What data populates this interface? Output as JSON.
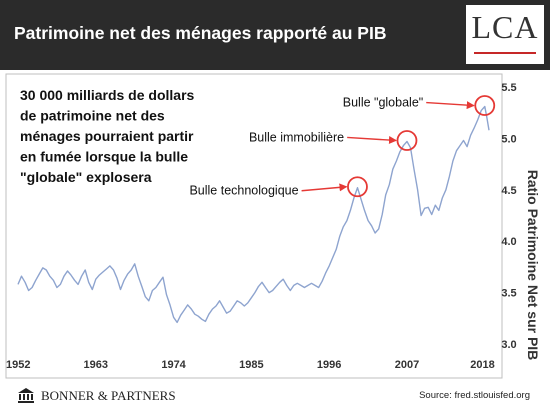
{
  "header": {
    "title": "Patrimoine net des ménages rapporté au PIB",
    "logo_text": "LCA"
  },
  "footer": {
    "brand": "BONNER & PARTNERS",
    "source": "Source: fred.stlouisfed.org"
  },
  "colors": {
    "header_bg": "#2b2b2b",
    "line": "#8ea4cf",
    "highlight": "#e53935",
    "text": "#111111"
  },
  "chart_data": {
    "type": "line",
    "title": "",
    "xlabel": "",
    "ylabel": "Ratio Patrimoine Net sur PIB",
    "xlim": [
      1952,
      2018.6
    ],
    "ylim": [
      3.0,
      5.5
    ],
    "x_ticks": [
      1952,
      1963,
      1974,
      1985,
      1996,
      2007,
      2018
    ],
    "y_ticks": [
      3.0,
      3.5,
      4.0,
      4.5,
      5.0,
      5.5
    ],
    "y_axis_side": "right",
    "grid": false,
    "legend": "none",
    "series": [
      {
        "name": "",
        "points": [
          [
            1952.0,
            3.58
          ],
          [
            1952.5,
            3.66
          ],
          [
            1953.0,
            3.6
          ],
          [
            1953.5,
            3.52
          ],
          [
            1954.0,
            3.55
          ],
          [
            1954.5,
            3.62
          ],
          [
            1955.0,
            3.68
          ],
          [
            1955.5,
            3.74
          ],
          [
            1956.0,
            3.72
          ],
          [
            1956.5,
            3.66
          ],
          [
            1957.0,
            3.62
          ],
          [
            1957.5,
            3.55
          ],
          [
            1958.0,
            3.58
          ],
          [
            1958.5,
            3.66
          ],
          [
            1959.0,
            3.71
          ],
          [
            1959.5,
            3.67
          ],
          [
            1960.0,
            3.62
          ],
          [
            1960.5,
            3.58
          ],
          [
            1961.0,
            3.66
          ],
          [
            1961.5,
            3.72
          ],
          [
            1962.0,
            3.6
          ],
          [
            1962.5,
            3.53
          ],
          [
            1963.0,
            3.63
          ],
          [
            1963.5,
            3.67
          ],
          [
            1964.0,
            3.7
          ],
          [
            1964.5,
            3.73
          ],
          [
            1965.0,
            3.76
          ],
          [
            1965.5,
            3.72
          ],
          [
            1966.0,
            3.64
          ],
          [
            1966.5,
            3.53
          ],
          [
            1967.0,
            3.62
          ],
          [
            1967.5,
            3.68
          ],
          [
            1968.0,
            3.72
          ],
          [
            1968.5,
            3.78
          ],
          [
            1969.0,
            3.66
          ],
          [
            1969.5,
            3.56
          ],
          [
            1970.0,
            3.46
          ],
          [
            1970.5,
            3.42
          ],
          [
            1971.0,
            3.52
          ],
          [
            1971.5,
            3.55
          ],
          [
            1972.0,
            3.6
          ],
          [
            1972.5,
            3.65
          ],
          [
            1973.0,
            3.48
          ],
          [
            1973.5,
            3.38
          ],
          [
            1974.0,
            3.26
          ],
          [
            1974.5,
            3.21
          ],
          [
            1975.0,
            3.28
          ],
          [
            1975.5,
            3.33
          ],
          [
            1976.0,
            3.38
          ],
          [
            1976.5,
            3.34
          ],
          [
            1977.0,
            3.29
          ],
          [
            1977.5,
            3.27
          ],
          [
            1978.0,
            3.24
          ],
          [
            1978.5,
            3.22
          ],
          [
            1979.0,
            3.29
          ],
          [
            1979.5,
            3.34
          ],
          [
            1980.0,
            3.37
          ],
          [
            1980.5,
            3.42
          ],
          [
            1981.0,
            3.36
          ],
          [
            1981.5,
            3.3
          ],
          [
            1982.0,
            3.32
          ],
          [
            1982.5,
            3.37
          ],
          [
            1983.0,
            3.42
          ],
          [
            1983.5,
            3.4
          ],
          [
            1984.0,
            3.37
          ],
          [
            1984.5,
            3.4
          ],
          [
            1985.0,
            3.45
          ],
          [
            1985.5,
            3.5
          ],
          [
            1986.0,
            3.56
          ],
          [
            1986.5,
            3.6
          ],
          [
            1987.0,
            3.55
          ],
          [
            1987.5,
            3.5
          ],
          [
            1988.0,
            3.52
          ],
          [
            1988.5,
            3.56
          ],
          [
            1989.0,
            3.6
          ],
          [
            1989.5,
            3.63
          ],
          [
            1990.0,
            3.57
          ],
          [
            1990.5,
            3.52
          ],
          [
            1991.0,
            3.57
          ],
          [
            1991.5,
            3.59
          ],
          [
            1992.0,
            3.57
          ],
          [
            1992.5,
            3.55
          ],
          [
            1993.0,
            3.57
          ],
          [
            1993.5,
            3.59
          ],
          [
            1994.0,
            3.57
          ],
          [
            1994.5,
            3.55
          ],
          [
            1995.0,
            3.61
          ],
          [
            1995.5,
            3.69
          ],
          [
            1996.0,
            3.76
          ],
          [
            1996.5,
            3.84
          ],
          [
            1997.0,
            3.92
          ],
          [
            1997.5,
            4.05
          ],
          [
            1998.0,
            4.14
          ],
          [
            1998.5,
            4.2
          ],
          [
            1999.0,
            4.3
          ],
          [
            1999.5,
            4.42
          ],
          [
            2000.0,
            4.52
          ],
          [
            2000.5,
            4.41
          ],
          [
            2001.0,
            4.3
          ],
          [
            2001.5,
            4.2
          ],
          [
            2002.0,
            4.15
          ],
          [
            2002.5,
            4.08
          ],
          [
            2003.0,
            4.12
          ],
          [
            2003.5,
            4.26
          ],
          [
            2004.0,
            4.45
          ],
          [
            2004.5,
            4.55
          ],
          [
            2005.0,
            4.7
          ],
          [
            2005.5,
            4.78
          ],
          [
            2006.0,
            4.87
          ],
          [
            2006.5,
            4.93
          ],
          [
            2007.0,
            4.97
          ],
          [
            2007.5,
            4.91
          ],
          [
            2008.0,
            4.7
          ],
          [
            2008.5,
            4.5
          ],
          [
            2009.0,
            4.25
          ],
          [
            2009.5,
            4.32
          ],
          [
            2010.0,
            4.33
          ],
          [
            2010.5,
            4.26
          ],
          [
            2011.0,
            4.35
          ],
          [
            2011.5,
            4.3
          ],
          [
            2012.0,
            4.42
          ],
          [
            2012.5,
            4.5
          ],
          [
            2013.0,
            4.63
          ],
          [
            2013.5,
            4.78
          ],
          [
            2014.0,
            4.88
          ],
          [
            2014.5,
            4.93
          ],
          [
            2015.0,
            4.98
          ],
          [
            2015.5,
            4.92
          ],
          [
            2016.0,
            5.03
          ],
          [
            2016.5,
            5.1
          ],
          [
            2017.0,
            5.18
          ],
          [
            2017.5,
            5.27
          ],
          [
            2018.0,
            5.31
          ],
          [
            2018.3,
            5.2
          ],
          [
            2018.6,
            5.08
          ]
        ]
      }
    ],
    "annotations": [
      {
        "text": "Bulle technologique",
        "target": [
          2000.0,
          4.52
        ],
        "label_pos": "left",
        "circle": true
      },
      {
        "text": "Bulle immobilière",
        "target": [
          2007.0,
          4.97
        ],
        "label_pos": "left",
        "circle": true
      },
      {
        "text": "Bulle \"globale\"",
        "target": [
          2018.0,
          5.31
        ],
        "label_pos": "left",
        "circle": true
      }
    ],
    "callout": [
      "30 000 milliards de dollars",
      "de patrimoine net des",
      "ménages pourraient partir",
      "en fumée lorsque la bulle",
      "\"globale\" explosera"
    ]
  }
}
